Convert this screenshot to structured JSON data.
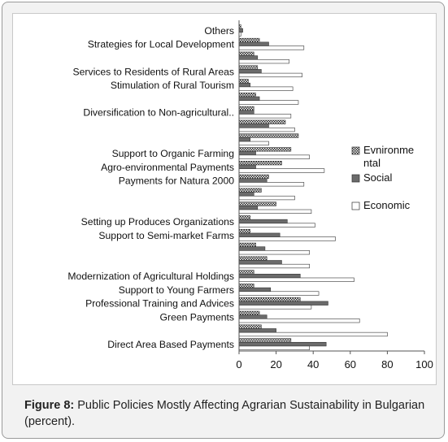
{
  "caption": {
    "label": "Figure 8:",
    "text": "Public Policies Mostly Affecting Agrarian Sustainability in Bulgarian (percent)."
  },
  "chart_data": {
    "type": "bar",
    "orientation": "horizontal",
    "xlim": [
      0,
      100
    ],
    "xticks": [
      0,
      20,
      40,
      60,
      80,
      100
    ],
    "grid": false,
    "legend_position": "right",
    "categories": [
      "Direct Area Based Payments",
      "",
      "Green Payments",
      "Professional Training and Advices",
      "Support to Young Farmers",
      "Modernization of Agricultural Holdings",
      "",
      "",
      "Support to Semi-market Farms",
      "Setting up Produces Organizations",
      "",
      "",
      "Payments for Natura 2000",
      "Agro-environmental Payments",
      "Support to Organic Farming",
      "",
      "",
      "Diversification to Non-agricultural..",
      "",
      "Stimulation of Rural Tourism",
      "Services to Residents of Rural Areas",
      "",
      "Strategies for Local Development",
      "Others"
    ],
    "series": [
      {
        "name": "Evnironmental",
        "values": [
          28,
          12,
          11,
          33,
          8,
          8,
          15,
          9,
          6,
          6,
          20,
          12,
          16,
          23,
          28,
          32,
          25,
          8,
          9,
          5,
          10,
          8,
          11,
          1
        ]
      },
      {
        "name": "Social",
        "values": [
          47,
          20,
          15,
          48,
          17,
          33,
          23,
          14,
          22,
          26,
          10,
          8,
          15,
          9,
          9,
          6,
          16,
          8,
          11,
          6,
          12,
          10,
          16,
          2
        ]
      },
      {
        "name": "Economic",
        "values": [
          38,
          80,
          65,
          39,
          43,
          62,
          38,
          38,
          52,
          41,
          39,
          30,
          35,
          46,
          38,
          16,
          30,
          28,
          32,
          29,
          34,
          27,
          35,
          1
        ]
      }
    ]
  },
  "colors": {
    "bar_social": "#6b6b6b",
    "bar_edge": "#333333"
  }
}
